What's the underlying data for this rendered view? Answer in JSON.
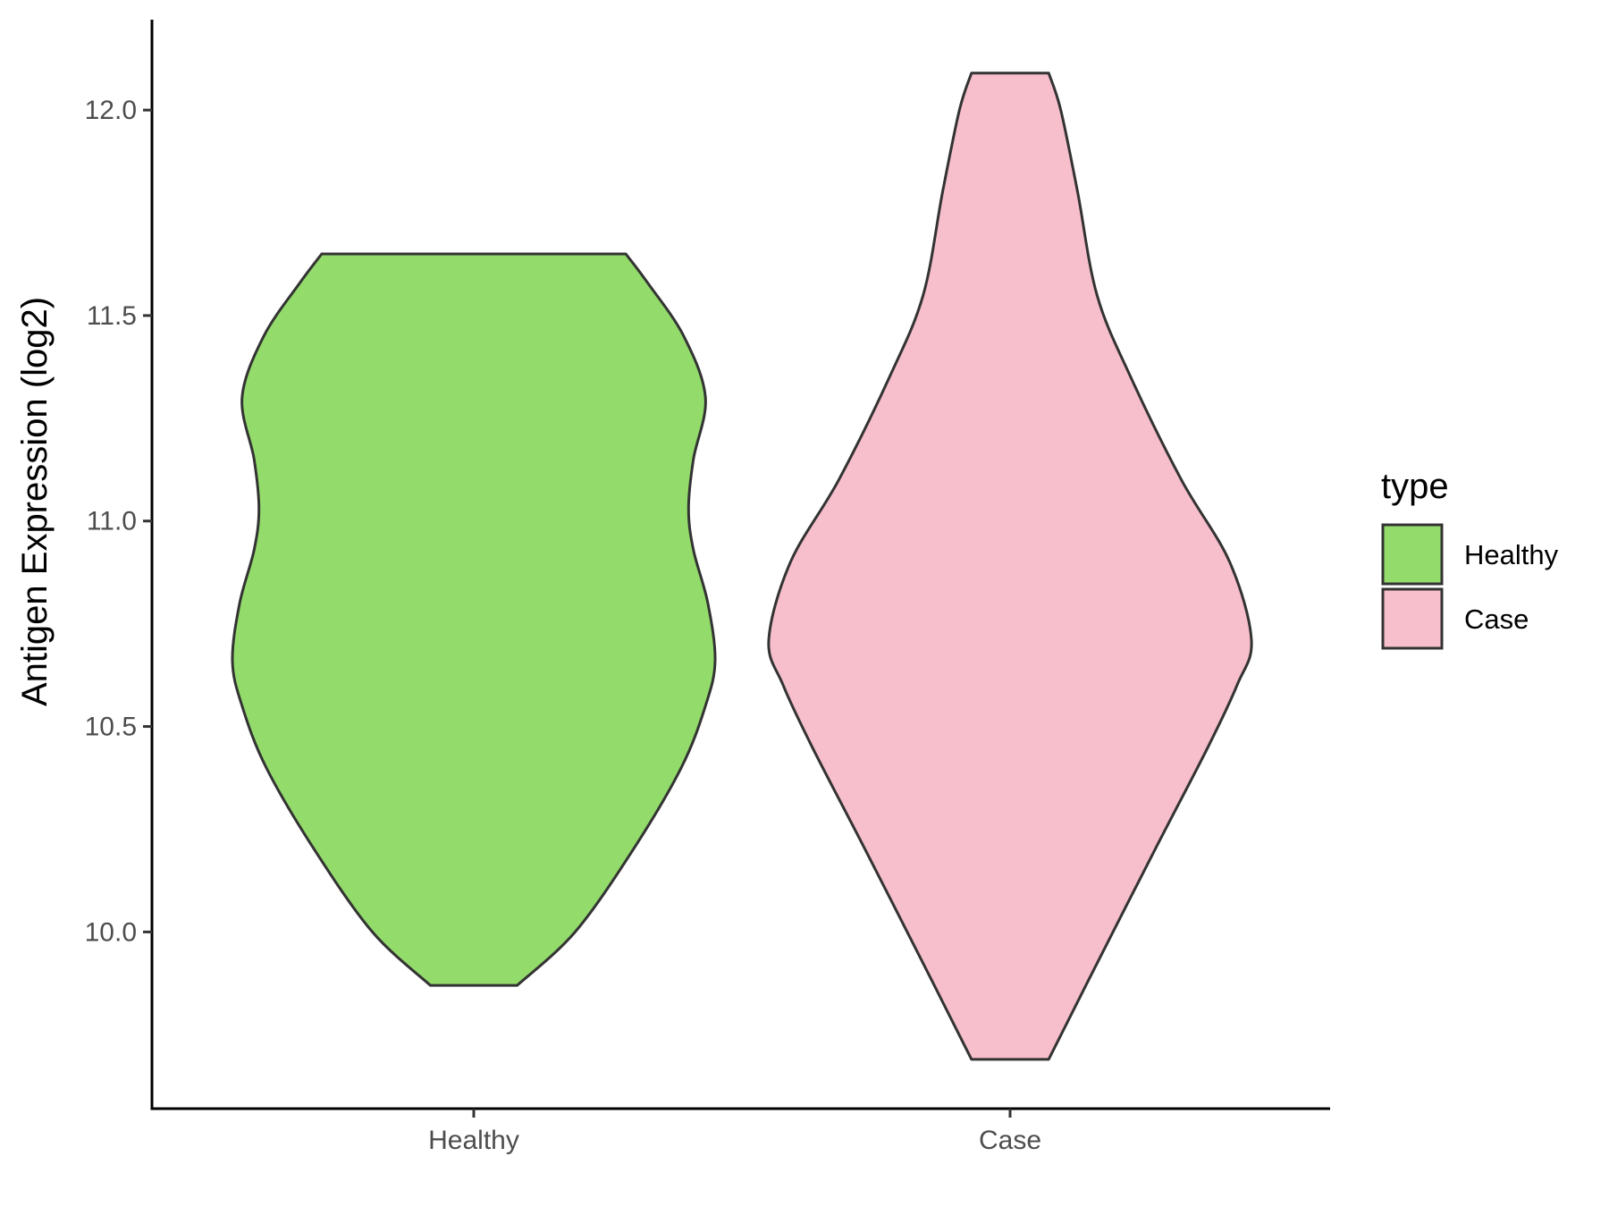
{
  "chart_data": {
    "type": "violin",
    "xlabel": "",
    "ylabel": "Antigen Expression (log2)",
    "categories": [
      "Healthy",
      "Case"
    ],
    "ylim": [
      9.57,
      12.22
    ],
    "yticks": [
      "10.0",
      "10.5",
      "11.0",
      "11.5",
      "12.0"
    ],
    "series": [
      {
        "name": "Healthy",
        "color": "#93dc6b",
        "min": 9.87,
        "max": 11.65,
        "density_profile": [
          {
            "y": 9.87,
            "w": 0.18
          },
          {
            "y": 10.0,
            "w": 0.42
          },
          {
            "y": 10.2,
            "w": 0.66
          },
          {
            "y": 10.4,
            "w": 0.86
          },
          {
            "y": 10.55,
            "w": 0.96
          },
          {
            "y": 10.66,
            "w": 1.0
          },
          {
            "y": 10.8,
            "w": 0.97
          },
          {
            "y": 10.93,
            "w": 0.91
          },
          {
            "y": 11.03,
            "w": 0.89
          },
          {
            "y": 11.15,
            "w": 0.91
          },
          {
            "y": 11.3,
            "w": 0.96
          },
          {
            "y": 11.45,
            "w": 0.87
          },
          {
            "y": 11.58,
            "w": 0.72
          },
          {
            "y": 11.65,
            "w": 0.63
          }
        ]
      },
      {
        "name": "Case",
        "color": "#f7bfcb",
        "min": 9.69,
        "max": 12.09,
        "density_profile": [
          {
            "y": 9.69,
            "w": 0.16
          },
          {
            "y": 9.9,
            "w": 0.34
          },
          {
            "y": 10.2,
            "w": 0.6
          },
          {
            "y": 10.45,
            "w": 0.82
          },
          {
            "y": 10.6,
            "w": 0.94
          },
          {
            "y": 10.71,
            "w": 1.0
          },
          {
            "y": 10.9,
            "w": 0.91
          },
          {
            "y": 11.1,
            "w": 0.71
          },
          {
            "y": 11.35,
            "w": 0.5
          },
          {
            "y": 11.55,
            "w": 0.36
          },
          {
            "y": 11.8,
            "w": 0.28
          },
          {
            "y": 12.0,
            "w": 0.21
          },
          {
            "y": 12.09,
            "w": 0.16
          }
        ]
      }
    ],
    "legend": {
      "title": "type",
      "position": "right",
      "items": [
        {
          "label": "Healthy",
          "color": "#93dc6b"
        },
        {
          "label": "Case",
          "color": "#f7bfcb"
        }
      ]
    },
    "outline_color": "#333333",
    "axis_color": "#000000"
  }
}
